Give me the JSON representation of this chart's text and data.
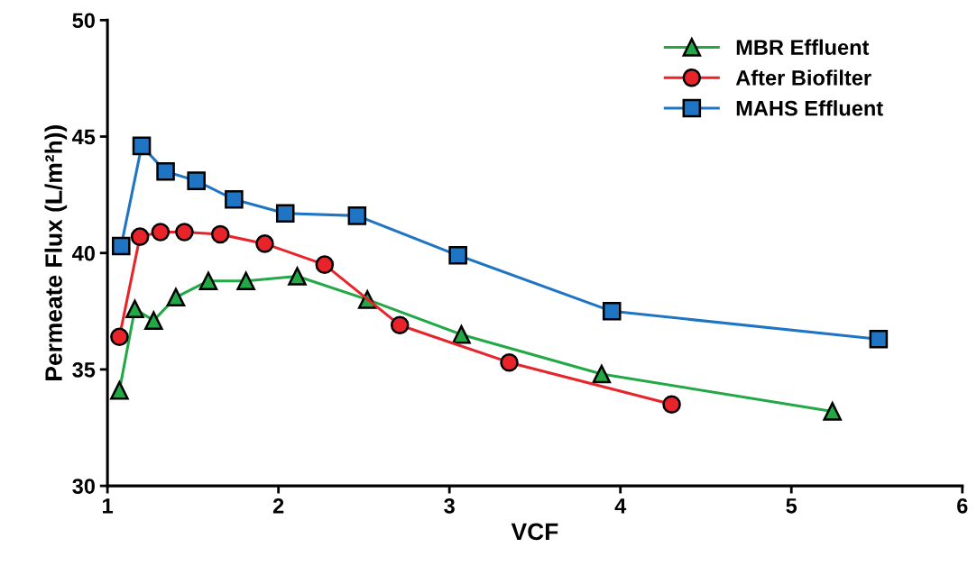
{
  "chart_data": {
    "type": "line",
    "xlabel": "VCF",
    "ylabel": "Permeate Flux (L/m²h))",
    "xlim": [
      1,
      6
    ],
    "xticks": [
      1,
      2,
      3,
      4,
      5,
      6
    ],
    "ylim": [
      30,
      50
    ],
    "yticks": [
      30,
      35,
      40,
      45,
      50
    ],
    "grid": false,
    "legend": "top right",
    "series": [
      {
        "name": "MBR Effluent",
        "color": "#22a845",
        "marker": "triangle",
        "x": [
          1.07,
          1.16,
          1.27,
          1.4,
          1.59,
          1.81,
          2.11,
          2.52,
          3.07,
          3.89,
          5.24
        ],
        "values": [
          34.1,
          37.6,
          37.1,
          38.1,
          38.8,
          38.8,
          39.0,
          38.0,
          36.5,
          34.8,
          33.2
        ]
      },
      {
        "name": "After Biofilter",
        "color": "#e8232a",
        "marker": "circle",
        "x": [
          1.07,
          1.19,
          1.31,
          1.45,
          1.66,
          1.92,
          2.27,
          2.71,
          3.35,
          4.3
        ],
        "values": [
          36.4,
          40.7,
          40.9,
          40.9,
          40.8,
          40.4,
          39.5,
          36.9,
          35.3,
          33.5
        ]
      },
      {
        "name": "MAHS Effluent",
        "color": "#1f74c4",
        "marker": "square",
        "x": [
          1.08,
          1.2,
          1.34,
          1.52,
          1.74,
          2.04,
          2.46,
          3.05,
          3.95,
          5.51
        ],
        "values": [
          40.3,
          44.6,
          43.5,
          43.1,
          42.3,
          41.7,
          41.6,
          39.9,
          37.5,
          36.3
        ]
      }
    ]
  }
}
